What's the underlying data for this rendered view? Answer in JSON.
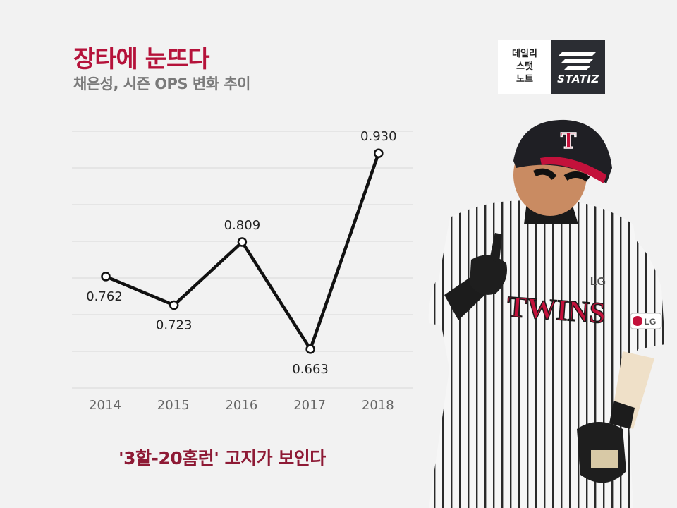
{
  "colors": {
    "accent": "#b5123a",
    "subtitle": "#7a7a7a",
    "line": "#111111",
    "grid": "#d8d8d8",
    "tick": "#666666",
    "footnote": "#8e1a35"
  },
  "header": {
    "title": "장타에 눈뜨다",
    "subtitle": "채은성, 시즌 OPS 변화 추이"
  },
  "brand": {
    "lines": [
      "데일리",
      "스탯",
      "노트"
    ],
    "name": "STATIZ"
  },
  "footnote": "'3할-20홈런' 고지가 보인다",
  "player_photo": {
    "jersey_text": "TWINS",
    "sleeve_text": "LG",
    "cap_letter": "T",
    "chest_text": "LG"
  },
  "chart_data": {
    "type": "line",
    "title": "",
    "xlabel": "",
    "ylabel": "",
    "categories": [
      "2014",
      "2015",
      "2016",
      "2017",
      "2018"
    ],
    "series": [
      {
        "values": [
          0.762,
          0.723,
          0.809,
          0.663,
          0.93
        ],
        "labels": [
          "0.762",
          "0.723",
          "0.809",
          "0.663",
          "0.930"
        ]
      }
    ],
    "ylim": [
      0.61,
      0.96
    ],
    "grid": true,
    "legend": "none"
  }
}
